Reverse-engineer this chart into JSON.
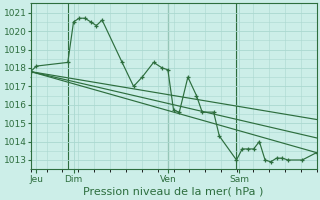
{
  "bg_color": "#cceee8",
  "grid_color": "#aad8d0",
  "line_color": "#2d6e3e",
  "title": "Pression niveau de la mer( hPa )",
  "ylim": [
    1012.5,
    1021.5
  ],
  "yticks": [
    1013,
    1014,
    1015,
    1016,
    1017,
    1018,
    1019,
    1020,
    1021
  ],
  "xlim": [
    0,
    100
  ],
  "day_labels": [
    "Jeu",
    "Dim",
    "Ven",
    "Sam"
  ],
  "day_positions": [
    2,
    15,
    48,
    73
  ],
  "vline_positions": [
    13,
    48,
    72
  ],
  "series1_x": [
    0,
    2,
    13,
    15,
    17,
    19,
    21,
    23,
    25,
    32,
    36,
    39,
    43,
    46,
    48,
    50,
    52,
    55,
    58,
    60,
    64,
    66,
    72,
    74,
    76,
    78,
    80,
    82,
    84,
    86,
    88,
    90,
    95,
    100
  ],
  "series1_y": [
    1017.8,
    1018.1,
    1018.3,
    1020.5,
    1020.7,
    1020.7,
    1020.5,
    1020.3,
    1020.6,
    1018.3,
    1017.0,
    1017.5,
    1018.3,
    1018.0,
    1017.9,
    1015.7,
    1015.6,
    1017.5,
    1016.5,
    1015.6,
    1015.6,
    1014.3,
    1013.0,
    1013.6,
    1013.6,
    1013.6,
    1014.0,
    1013.0,
    1012.9,
    1013.1,
    1013.1,
    1013.0,
    1013.0,
    1013.4
  ],
  "line2_x": [
    0,
    100
  ],
  "line2_y": [
    1017.8,
    1013.4
  ],
  "line3_x": [
    0,
    100
  ],
  "line3_y": [
    1017.8,
    1014.2
  ],
  "line4_x": [
    0,
    100
  ],
  "line4_y": [
    1017.8,
    1015.2
  ],
  "tick_fontsize": 6.5,
  "label_fontsize": 8.0
}
